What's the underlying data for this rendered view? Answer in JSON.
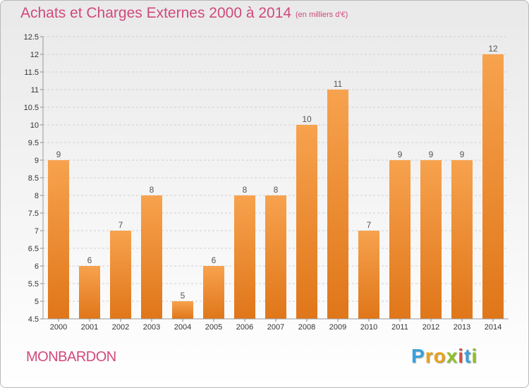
{
  "chart_data": {
    "type": "bar",
    "title": "Achats et Charges Externes 2000 à 2014",
    "unit": "(en milliers d'€)",
    "categories": [
      "2000",
      "2001",
      "2002",
      "2003",
      "2004",
      "2005",
      "2006",
      "2007",
      "2008",
      "2009",
      "2010",
      "2011",
      "2012",
      "2013",
      "2014"
    ],
    "values": [
      9,
      6,
      7,
      8,
      5,
      6,
      8,
      8,
      10,
      11,
      7,
      9,
      9,
      9,
      12
    ],
    "data_labels": [
      "9",
      "6",
      "7",
      "8",
      "5",
      "6",
      "8",
      "8",
      "10",
      "11",
      "7",
      "9",
      "9",
      "9",
      "12"
    ],
    "ylim": [
      4.5,
      12.5
    ],
    "yticks": [
      4.5,
      5,
      5.5,
      6,
      6.5,
      7,
      7.5,
      8,
      8.5,
      9,
      9.5,
      10,
      10.5,
      11,
      11.5,
      12,
      12.5
    ],
    "ytick_labels": [
      "4.5",
      "5",
      "5.5",
      "6",
      "6.5",
      "7",
      "7.5",
      "8",
      "8.5",
      "9",
      "9.5",
      "10",
      "10.5",
      "11",
      "11.5",
      "12",
      "12.5"
    ],
    "grid": "horizontal-dashed",
    "bar_color": "#f08a2e"
  },
  "commune": "MONBARDON",
  "logo": {
    "letters": [
      "P",
      "r",
      "o",
      "x",
      "i",
      "t",
      "i"
    ],
    "colors": [
      "#3aa0dc",
      "#e8a21c",
      "#e8a21c",
      "#8ec02a",
      "#e04a3a",
      "#3aa0dc",
      "#8ec02a"
    ]
  }
}
